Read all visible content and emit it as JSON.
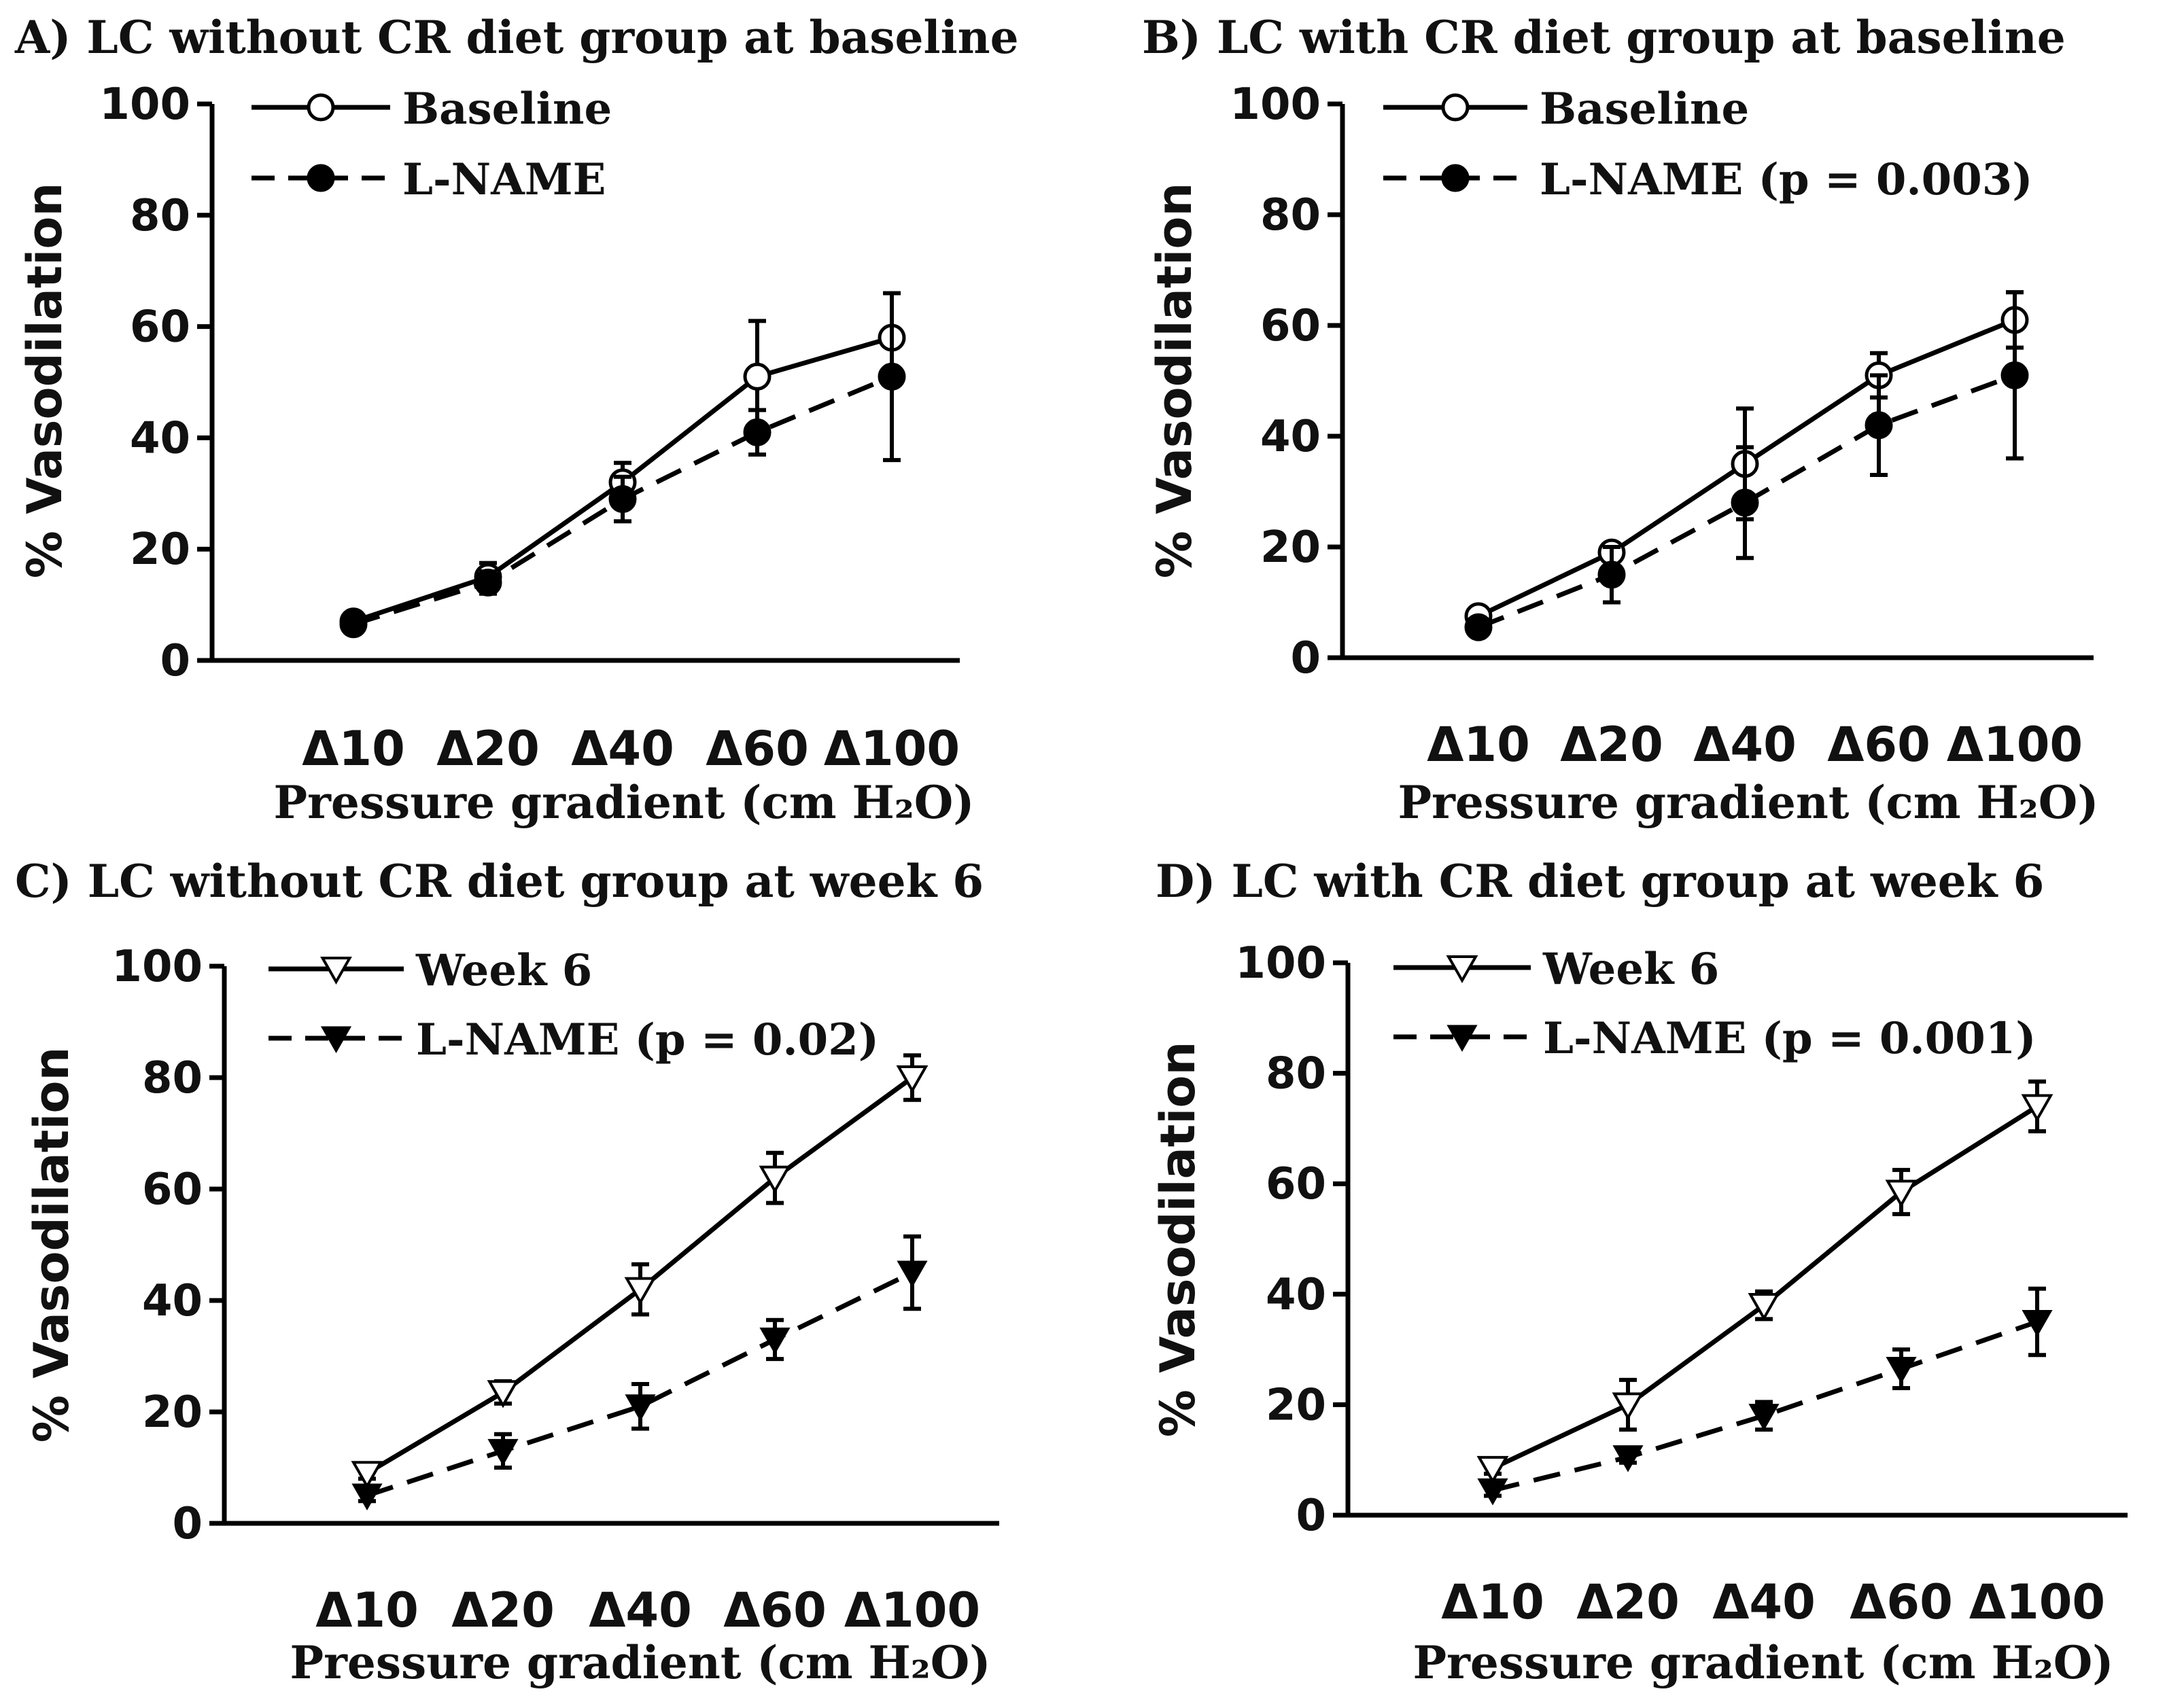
{
  "chart_data": [
    {
      "type": "line",
      "title": "A) LC without CR diet group at baseline",
      "xlabel": "Pressure gradient (cm H₂O)",
      "ylabel": "% Vasodilation",
      "categories": [
        "Δ10",
        "Δ20",
        "Δ40",
        "Δ60",
        "Δ100"
      ],
      "ylim": [
        0,
        100
      ],
      "yticks": [
        0,
        20,
        40,
        60,
        80,
        100
      ],
      "series": [
        {
          "name": "Baseline",
          "label": "Baseline",
          "marker": "open-circle",
          "line": "solid",
          "values": [
            7,
            15,
            32,
            51,
            58
          ],
          "errors": [
            1,
            2.5,
            3.5,
            10,
            8
          ]
        },
        {
          "name": "L-NAME",
          "label": "L-NAME",
          "marker": "filled-circle",
          "line": "dashed",
          "values": [
            6.5,
            14,
            29,
            41,
            51
          ],
          "errors": [
            1,
            2,
            4,
            4,
            15
          ]
        }
      ]
    },
    {
      "type": "line",
      "title": "B) LC with CR diet group at baseline",
      "xlabel": "Pressure gradient (cm H₂O)",
      "ylabel": "% Vasodilation",
      "categories": [
        "Δ10",
        "Δ20",
        "Δ40",
        "Δ60",
        "Δ100"
      ],
      "ylim": [
        0,
        100
      ],
      "yticks": [
        0,
        20,
        40,
        60,
        80,
        100
      ],
      "series": [
        {
          "name": "Baseline",
          "label": "Baseline",
          "marker": "open-circle",
          "line": "solid",
          "values": [
            7.5,
            19,
            35,
            51,
            61
          ],
          "errors": [
            1,
            1.5,
            10,
            4,
            5
          ]
        },
        {
          "name": "L-NAME",
          "label": "L-NAME (p = 0.003)",
          "marker": "filled-circle",
          "line": "dashed",
          "values": [
            5.5,
            15,
            28,
            42,
            51
          ],
          "errors": [
            1,
            5,
            10,
            9,
            15
          ]
        }
      ]
    },
    {
      "type": "line",
      "title": "C) LC without CR diet group at week 6",
      "xlabel": "Pressure gradient (cm H₂O)",
      "ylabel": "% Vasodilation",
      "categories": [
        "Δ10",
        "Δ20",
        "Δ40",
        "Δ60",
        "Δ100"
      ],
      "ylim": [
        0,
        100
      ],
      "yticks": [
        0,
        20,
        40,
        60,
        80,
        100
      ],
      "series": [
        {
          "name": "Week 6",
          "label": "Week 6",
          "marker": "open-triangle-down",
          "line": "solid",
          "values": [
            9,
            23.5,
            42,
            62,
            80
          ],
          "errors": [
            1,
            2,
            4.5,
            4.5,
            4
          ]
        },
        {
          "name": "L-NAME",
          "label": "L-NAME (p = 0.02)",
          "marker": "filled-triangle-down",
          "line": "dashed",
          "values": [
            5,
            13,
            21,
            33,
            45
          ],
          "errors": [
            1,
            3,
            4,
            3.5,
            6.5
          ]
        }
      ]
    },
    {
      "type": "line",
      "title": "D) LC with CR diet group at week 6",
      "xlabel": "Pressure gradient (cm H₂O)",
      "ylabel": "% Vasodilation",
      "categories": [
        "Δ10",
        "Δ20",
        "Δ40",
        "Δ60",
        "Δ100"
      ],
      "ylim": [
        0,
        100
      ],
      "yticks": [
        0,
        20,
        40,
        60,
        80,
        100
      ],
      "series": [
        {
          "name": "Week 6",
          "label": "Week 6",
          "marker": "open-triangle-down",
          "line": "solid",
          "values": [
            8.5,
            20,
            38,
            58.5,
            74
          ],
          "errors": [
            1,
            4.5,
            2.5,
            4,
            4.5
          ]
        },
        {
          "name": "L-NAME",
          "label": "L-NAME (p = 0.001)",
          "marker": "filled-triangle-down",
          "line": "dashed",
          "values": [
            4.5,
            10.5,
            18,
            26.5,
            35
          ],
          "errors": [
            1,
            1,
            2.5,
            3.5,
            6
          ]
        }
      ]
    }
  ]
}
